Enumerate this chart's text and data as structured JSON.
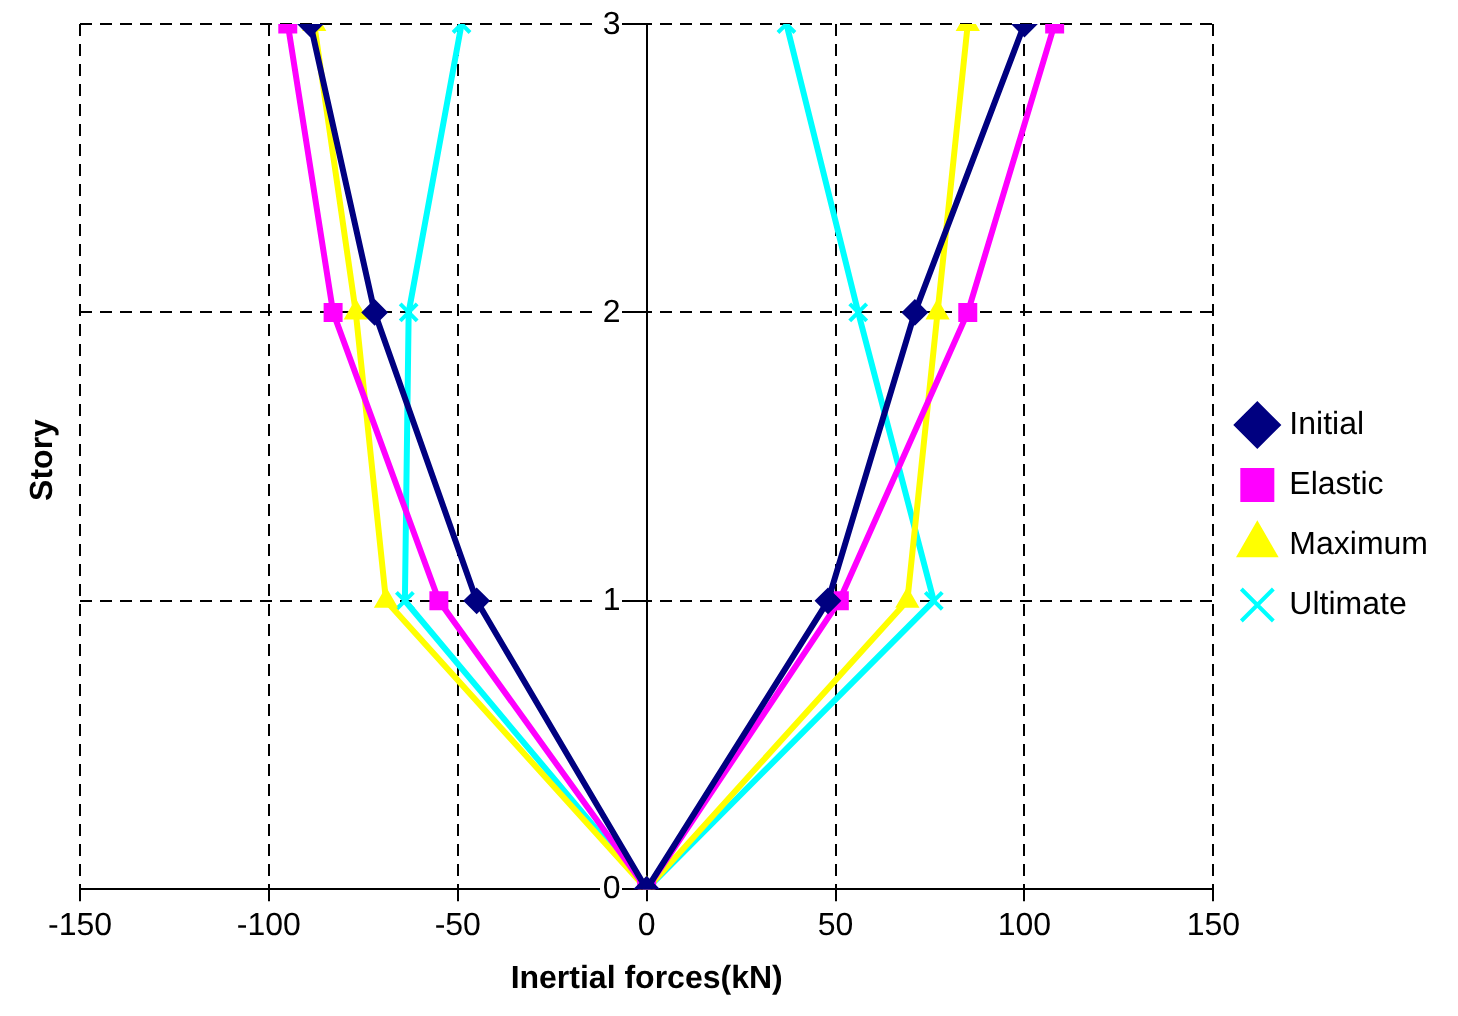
{
  "chart_data": {
    "type": "line",
    "xlabel": "Inertial forces(kN)",
    "ylabel": "Story",
    "xlim": [
      -150,
      150
    ],
    "xticks": [
      -150,
      -100,
      -50,
      0,
      50,
      100,
      150
    ],
    "ylim": [
      0,
      3
    ],
    "yticks": [
      0,
      1,
      2,
      3
    ],
    "grid": true,
    "legend": "right",
    "line_style": "solid",
    "series": [
      {
        "name": "Initial",
        "color": "#000080",
        "marker": "diamond",
        "x": [
          -89,
          -72,
          -45,
          0,
          48,
          71,
          100
        ],
        "values": [
          3,
          2,
          1,
          0,
          1,
          2,
          3
        ]
      },
      {
        "name": "Elastic",
        "color": "#ff00ff",
        "marker": "square",
        "x": [
          -95,
          -83,
          -55,
          0,
          51,
          85,
          108
        ],
        "values": [
          3,
          2,
          1,
          0,
          1,
          2,
          3
        ]
      },
      {
        "name": "Maximum",
        "color": "#ffff00",
        "marker": "triangle",
        "x": [
          -88,
          -77,
          -69,
          0,
          69,
          77,
          85
        ],
        "values": [
          3,
          2,
          1,
          0,
          1,
          2,
          3
        ]
      },
      {
        "name": "Ultimate",
        "color": "#00ffff",
        "marker": "cross",
        "x": [
          -49,
          -63,
          -64,
          0,
          76,
          56,
          37
        ],
        "values": [
          3,
          2,
          1,
          0,
          1,
          2,
          3
        ]
      }
    ]
  }
}
